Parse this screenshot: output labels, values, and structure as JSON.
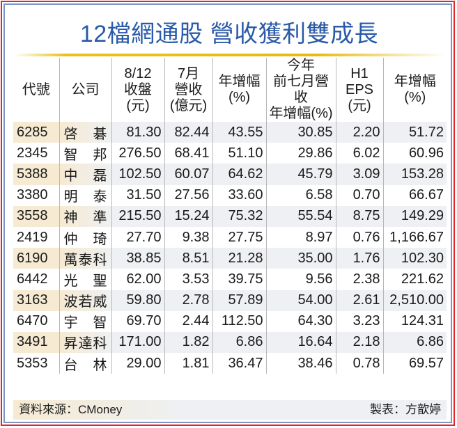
{
  "title": "12檔網通股  營收獲利雙成長",
  "colors": {
    "title": "#2a5aa8",
    "gold_rule": "#e6bc10",
    "outer_border": "#e8232a",
    "inner_border": "#7d95c4",
    "highlight_left": "#f6ead2",
    "highlight_right": "#eef0f3"
  },
  "table": {
    "headers": [
      {
        "lines": [
          "代號"
        ]
      },
      {
        "lines": [
          "公司"
        ]
      },
      {
        "lines": [
          "8/12",
          "收盤",
          "(元)"
        ]
      },
      {
        "lines": [
          "7月",
          "營收",
          "(億元)"
        ]
      },
      {
        "lines": [
          "年增幅",
          "(%)"
        ]
      },
      {
        "lines": [
          "今年",
          "前七月營收",
          "年增幅(%)"
        ]
      },
      {
        "lines": [
          "H1",
          "EPS",
          "(元)"
        ]
      },
      {
        "lines": [
          "年增幅",
          "(%)"
        ]
      }
    ],
    "rows": [
      {
        "code": "6285",
        "company": "啓碁",
        "close": "81.30",
        "jul_rev": "82.44",
        "jul_yoy": "43.55",
        "ytd_yoy": "30.85",
        "h1_eps": "2.20",
        "eps_yoy": "51.72"
      },
      {
        "code": "2345",
        "company": "智邦",
        "close": "276.50",
        "jul_rev": "68.41",
        "jul_yoy": "51.10",
        "ytd_yoy": "29.86",
        "h1_eps": "6.02",
        "eps_yoy": "60.96"
      },
      {
        "code": "5388",
        "company": "中磊",
        "close": "102.50",
        "jul_rev": "60.07",
        "jul_yoy": "64.62",
        "ytd_yoy": "45.79",
        "h1_eps": "3.09",
        "eps_yoy": "153.28"
      },
      {
        "code": "3380",
        "company": "明泰",
        "close": "31.50",
        "jul_rev": "27.56",
        "jul_yoy": "33.60",
        "ytd_yoy": "6.58",
        "h1_eps": "0.70",
        "eps_yoy": "66.67"
      },
      {
        "code": "3558",
        "company": "神準",
        "close": "215.50",
        "jul_rev": "15.24",
        "jul_yoy": "75.32",
        "ytd_yoy": "55.54",
        "h1_eps": "8.75",
        "eps_yoy": "149.29"
      },
      {
        "code": "2419",
        "company": "仲琦",
        "close": "27.70",
        "jul_rev": "9.38",
        "jul_yoy": "27.75",
        "ytd_yoy": "8.97",
        "h1_eps": "0.76",
        "eps_yoy": "1,166.67"
      },
      {
        "code": "6190",
        "company": "萬泰科",
        "close": "38.85",
        "jul_rev": "8.51",
        "jul_yoy": "21.28",
        "ytd_yoy": "35.00",
        "h1_eps": "1.76",
        "eps_yoy": "102.30"
      },
      {
        "code": "6442",
        "company": "光聖",
        "close": "62.00",
        "jul_rev": "3.53",
        "jul_yoy": "39.75",
        "ytd_yoy": "9.56",
        "h1_eps": "2.38",
        "eps_yoy": "221.62"
      },
      {
        "code": "3163",
        "company": "波若威",
        "close": "59.80",
        "jul_rev": "2.78",
        "jul_yoy": "57.89",
        "ytd_yoy": "54.00",
        "h1_eps": "2.61",
        "eps_yoy": "2,510.00"
      },
      {
        "code": "6470",
        "company": "宇智",
        "close": "69.70",
        "jul_rev": "2.44",
        "jul_yoy": "112.50",
        "ytd_yoy": "64.30",
        "h1_eps": "3.23",
        "eps_yoy": "124.31"
      },
      {
        "code": "3491",
        "company": "昇達科",
        "close": "171.00",
        "jul_rev": "1.82",
        "jul_yoy": "6.86",
        "ytd_yoy": "16.64",
        "h1_eps": "2.18",
        "eps_yoy": "6.86"
      },
      {
        "code": "5353",
        "company": "台林",
        "close": "29.00",
        "jul_rev": "1.81",
        "jul_yoy": "36.47",
        "ytd_yoy": "38.46",
        "h1_eps": "0.78",
        "eps_yoy": "69.57"
      }
    ]
  },
  "footer": {
    "source": "資料來源：CMoney",
    "maker": "製表：方歆婷"
  }
}
